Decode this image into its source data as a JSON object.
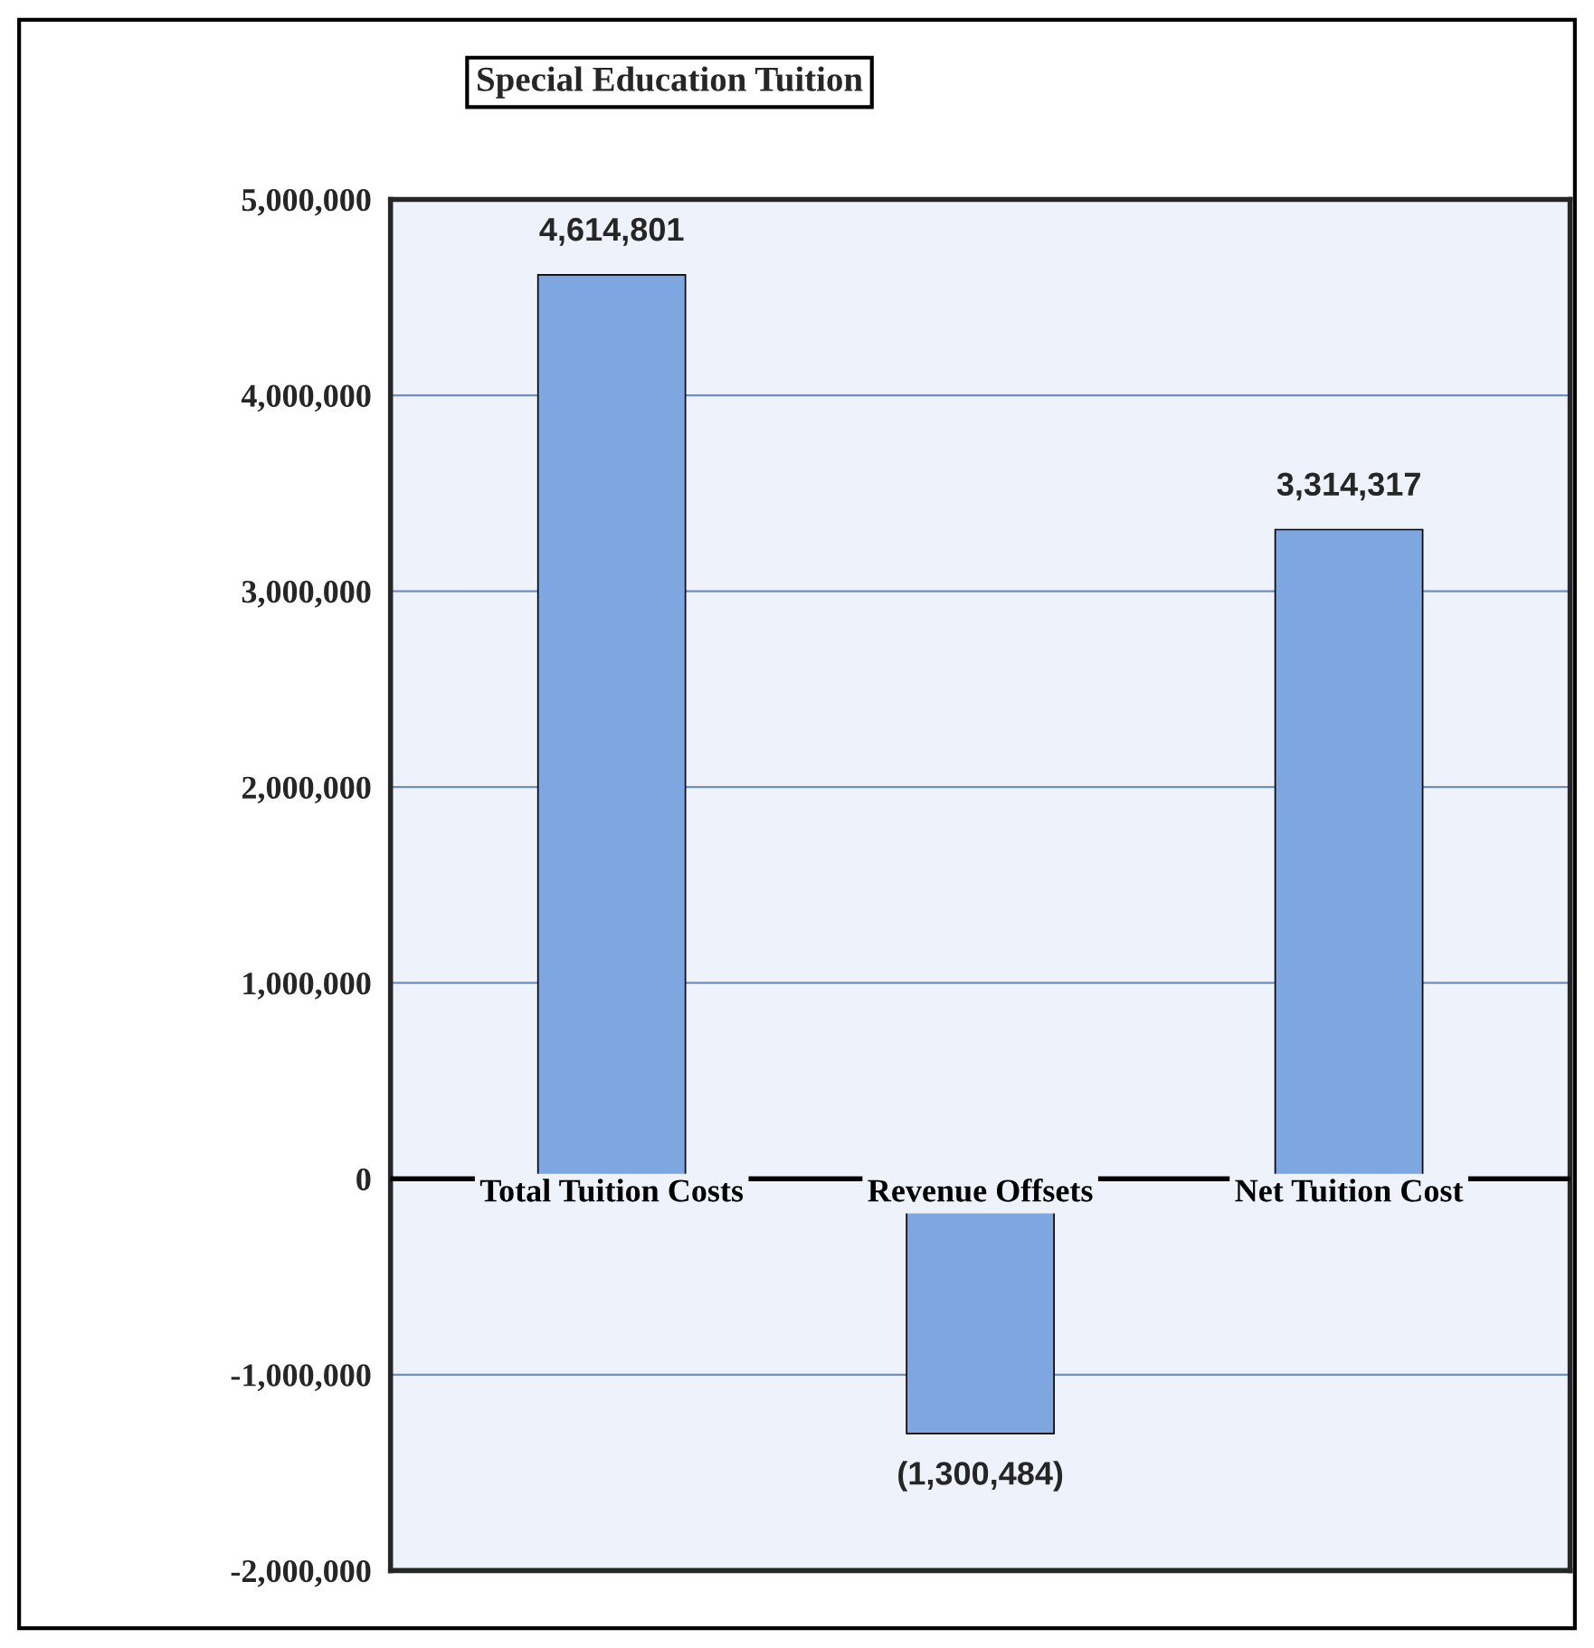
{
  "chart_data": {
    "type": "bar",
    "title": "Special Education Tuition",
    "categories": [
      "Total Tuition Costs",
      "Revenue Offsets",
      "Net Tuition Cost"
    ],
    "values": [
      4614801,
      -1300484,
      3314317
    ],
    "value_labels": [
      "4,614,801",
      "(1,300,484)",
      "3,314,317"
    ],
    "color": "#7ea6e0",
    "ylim": [
      -2000000,
      5000000
    ],
    "yticks": [
      {
        "value": -2000000,
        "label": "-2,000,000"
      },
      {
        "value": -1000000,
        "label": "-1,000,000"
      },
      0,
      {
        "value": 1000000,
        "label": "1,000,000"
      },
      {
        "value": 2000000,
        "label": "2,000,000"
      },
      {
        "value": 3000000,
        "label": "3,000,000"
      },
      {
        "value": 4000000,
        "label": "4,000,000"
      },
      {
        "value": 5000000,
        "label": "5,000,000"
      }
    ],
    "grid": "y"
  }
}
